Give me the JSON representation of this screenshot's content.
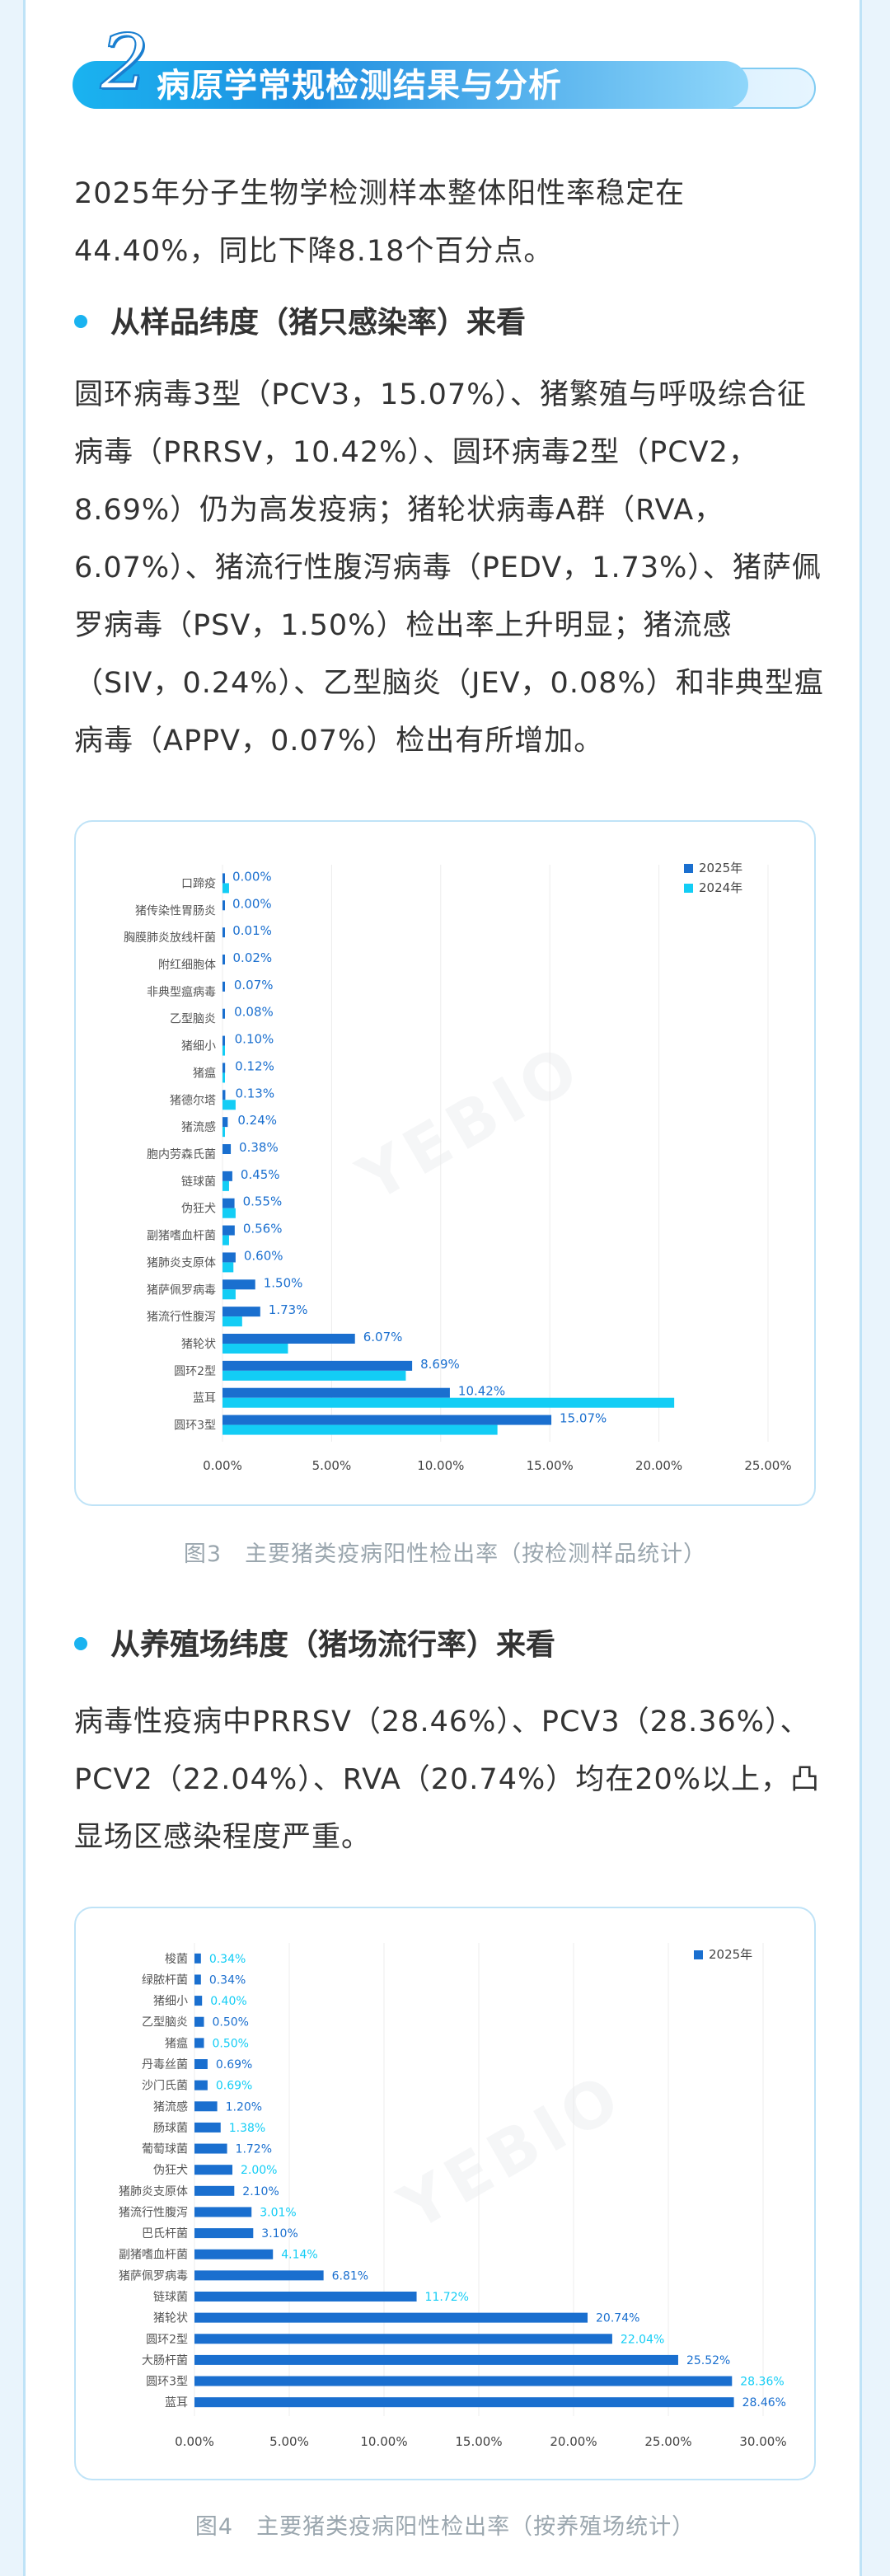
{
  "header": {
    "number": "2",
    "title": "病原学常规检测结果与分析"
  },
  "intro": "2025年分子生物学检测样本整体阳性率稳定在44.40%，同比下降8.18个百分点。",
  "section1": {
    "heading": "从样品纬度（猪只感染率）来看",
    "paragraph": "圆环病毒3型（PCV3，15.07%）、猪繁殖与呼吸综合征病毒（PRRSV，10.42%）、圆环病毒2型（PCV2，8.69%）仍为高发疫病；猪轮状病毒A群（RVA，6.07%）、猪流行性腹泻病毒（PEDV，1.73%）、猪萨佩罗病毒（PSV，1.50%）检出率上升明显；猪流感（SIV，0.24%）、乙型脑炎（JEV，0.08%）和非典型瘟病毒（APPV，0.07%）检出有所增加。",
    "caption": "图3　主要猪类疫病阳性检出率（按检测样品统计）"
  },
  "section2": {
    "heading": "从养殖场纬度（猪场流行率）来看",
    "paragraph": "病毒性疫病中PRRSV（28.46%）、PCV3（28.36%）、PCV2（22.04%）、RVA（20.74%）均在20%以上，凸显场区感染程度严重。",
    "caption": "图4　主要猪类疫病阳性检出率（按养殖场统计）"
  },
  "watermark": "YEBIO",
  "colors": {
    "series_2025": "#1a6fcf",
    "series_2024": "#13cdf5",
    "label_2025": "#1a6fcf",
    "label_2024": "#13cdf5"
  },
  "chart_data": [
    {
      "type": "bar",
      "orientation": "horizontal",
      "categories": [
        "口蹄疫",
        "猪传染性胃肠炎",
        "胸膜肺炎放线杆菌",
        "附红细胞体",
        "非典型瘟病毒",
        "乙型脑炎",
        "猪细小",
        "猪瘟",
        "猪德尔塔",
        "猪流感",
        "胞内劳森氏菌",
        "链球菌",
        "伪狂犬",
        "副猪嗜血杆菌",
        "猪肺炎支原体",
        "猪萨佩罗病毒",
        "猪流行性腹泻",
        "猪轮状",
        "圆环2型",
        "蓝耳",
        "圆环3型"
      ],
      "series": [
        {
          "name": "2025年",
          "values": [
            0.0,
            0.0,
            0.01,
            0.02,
            0.07,
            0.08,
            0.1,
            0.12,
            0.13,
            0.24,
            0.38,
            0.45,
            0.55,
            0.56,
            0.6,
            1.5,
            1.73,
            6.07,
            8.69,
            10.42,
            15.07
          ]
        },
        {
          "name": "2024年",
          "values": [
            0.3,
            0.0,
            0.0,
            0.0,
            0.0,
            0.0,
            0.1,
            0.1,
            0.6,
            0.1,
            0.0,
            0.3,
            0.6,
            0.3,
            0.5,
            0.6,
            0.9,
            3.0,
            8.4,
            20.7,
            12.6
          ]
        }
      ],
      "value_labels": [
        "0.00%",
        "0.00%",
        "0.01%",
        "0.02%",
        "0.07%",
        "0.08%",
        "0.10%",
        "0.12%",
        "0.13%",
        "0.24%",
        "0.38%",
        "0.45%",
        "0.55%",
        "0.56%",
        "0.60%",
        "1.50%",
        "1.73%",
        "6.07%",
        "8.69%",
        "10.42%",
        "15.07%"
      ],
      "xlim": [
        0,
        25
      ],
      "xticks": [
        "0.00%",
        "5.00%",
        "10.00%",
        "15.00%",
        "20.00%",
        "25.00%"
      ],
      "legend": "top-right",
      "grid": true
    },
    {
      "type": "bar",
      "orientation": "horizontal",
      "categories": [
        "梭菌",
        "绿脓杆菌",
        "猪细小",
        "乙型脑炎",
        "猪瘟",
        "丹毒丝菌",
        "沙门氏菌",
        "猪流感",
        "肠球菌",
        "葡萄球菌",
        "伪狂犬",
        "猪肺炎支原体",
        "猪流行性腹泻",
        "巴氏杆菌",
        "副猪嗜血杆菌",
        "猪萨佩罗病毒",
        "链球菌",
        "猪轮状",
        "圆环2型",
        "大肠杆菌",
        "圆环3型",
        "蓝耳"
      ],
      "series": [
        {
          "name": "2025年",
          "values": [
            0.34,
            0.34,
            0.4,
            0.5,
            0.5,
            0.69,
            0.69,
            1.2,
            1.38,
            1.72,
            2.0,
            2.1,
            3.01,
            3.1,
            4.14,
            6.81,
            11.72,
            20.74,
            22.04,
            25.52,
            28.36,
            28.46
          ]
        }
      ],
      "value_labels": [
        "0.34%",
        "0.34%",
        "0.40%",
        "0.50%",
        "0.50%",
        "0.69%",
        "0.69%",
        "1.20%",
        "1.38%",
        "1.72%",
        "2.00%",
        "2.10%",
        "3.01%",
        "3.10%",
        "4.14%",
        "6.81%",
        "11.72%",
        "20.74%",
        "22.04%",
        "25.52%",
        "28.36%",
        "28.46%"
      ],
      "xlim": [
        0,
        30
      ],
      "xticks": [
        "0.00%",
        "5.00%",
        "10.00%",
        "15.00%",
        "20.00%",
        "25.00%",
        "30.00%"
      ],
      "legend": "top-right",
      "grid": true
    }
  ]
}
